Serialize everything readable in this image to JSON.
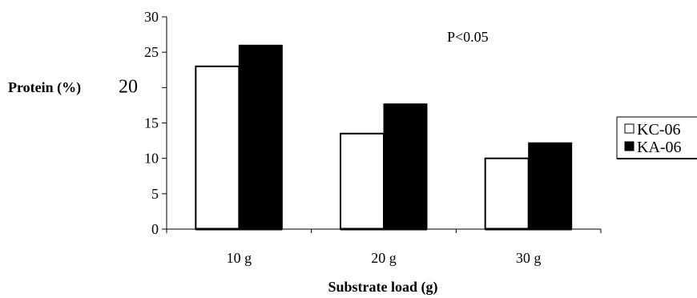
{
  "chart_data": {
    "type": "bar",
    "categories": [
      "10 g",
      "20 g",
      "30 g"
    ],
    "series": [
      {
        "name": "KC-06",
        "values": [
          23,
          13.5,
          10
        ],
        "color": "#ffffff",
        "stroke": "#000000"
      },
      {
        "name": "KA-06",
        "values": [
          26,
          17.7,
          12.2
        ],
        "color": "#000000",
        "stroke": "#000000"
      }
    ],
    "title": "",
    "xlabel": "Substrate load (g)",
    "ylabel": "Protein (%)",
    "ylim": [
      0,
      30
    ],
    "yticks": [
      "0",
      "5",
      "10",
      "15",
      "20",
      "25",
      "30"
    ],
    "annotation": "P<0.05",
    "grid": false,
    "legend_position": "right"
  }
}
